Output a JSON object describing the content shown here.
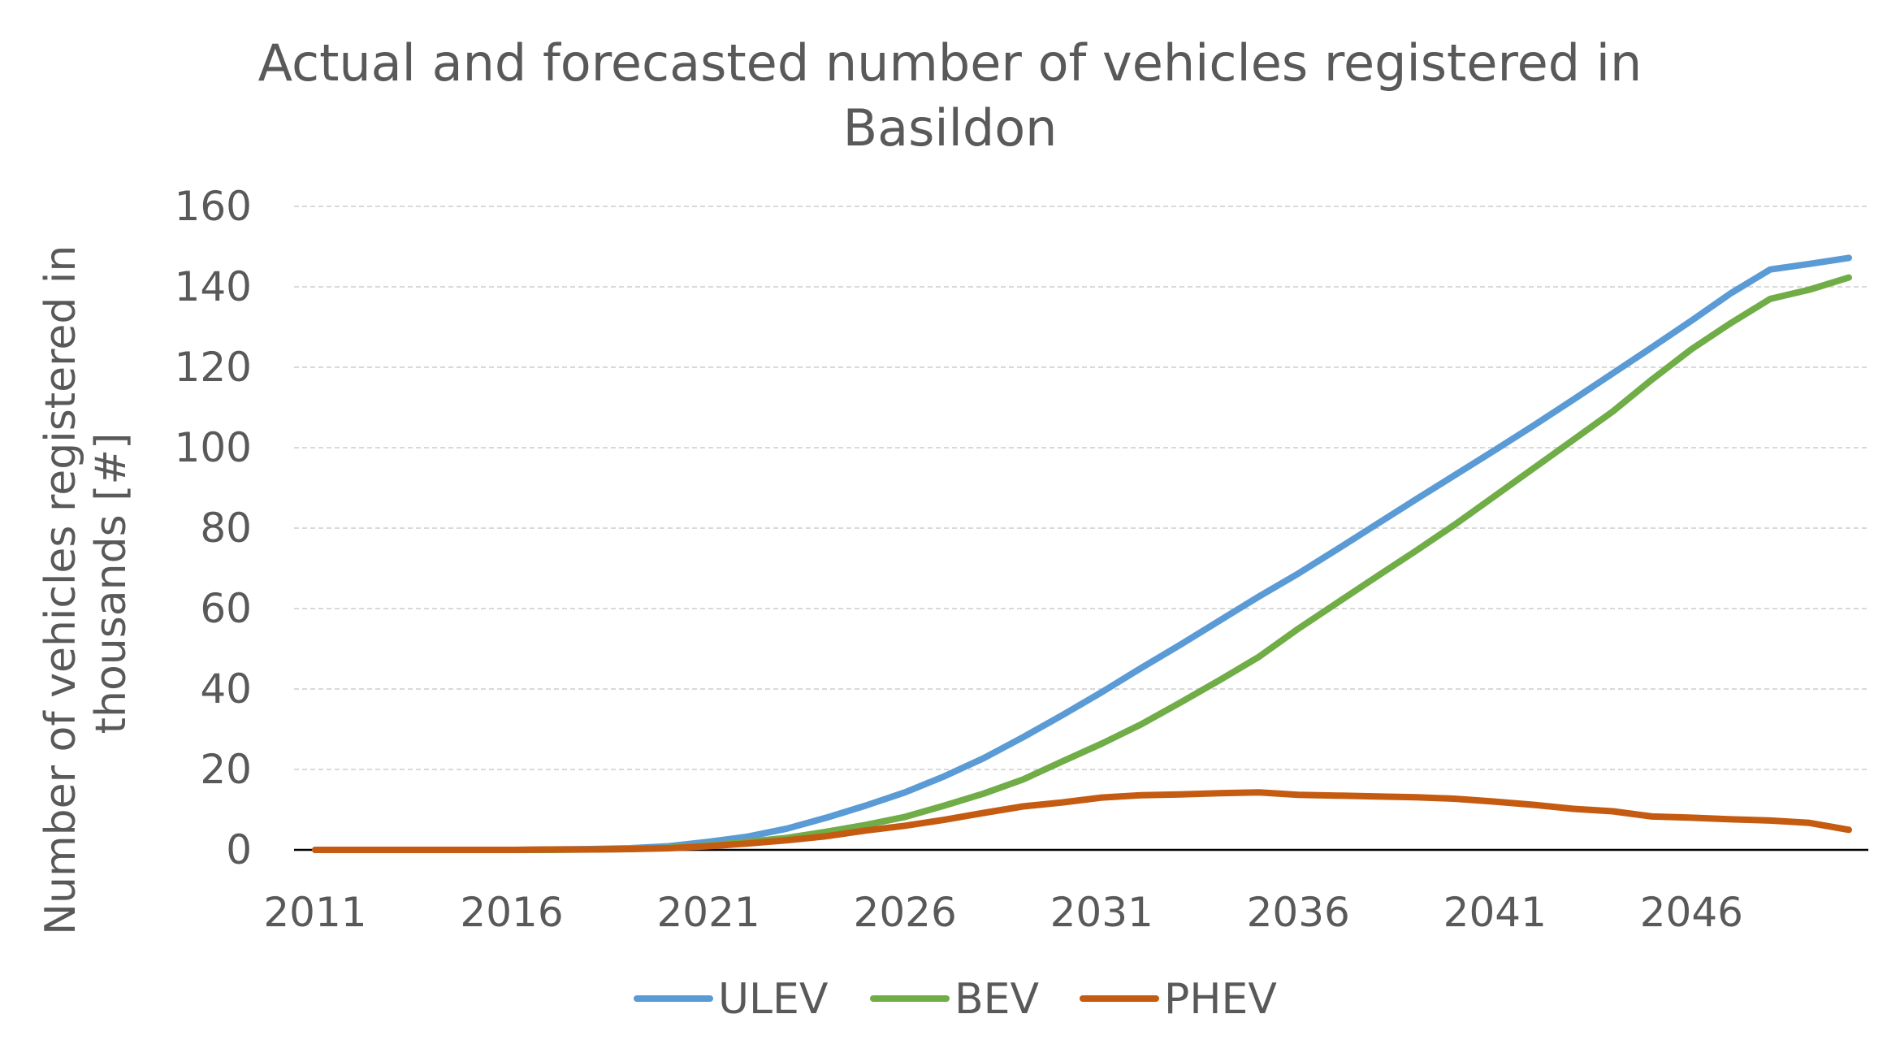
{
  "chart_data": {
    "type": "line",
    "title": "Actual and forecasted number of vehicles registered in\nBasildon",
    "ylabel": "Number of vehicles registered in thousands [#]",
    "ylabel_lines": [
      "Number of vehicles registered in",
      "thousands [#]"
    ],
    "xlabel": "",
    "ylim": [
      0,
      160
    ],
    "yticks": [
      0,
      20,
      40,
      60,
      80,
      100,
      120,
      140,
      160
    ],
    "xlim": [
      2011,
      2050
    ],
    "xticks": [
      2011,
      2016,
      2021,
      2026,
      2031,
      2036,
      2041,
      2046
    ],
    "grid": "horizontal dashed",
    "legend_position": "bottom",
    "x": [
      2011,
      2012,
      2013,
      2014,
      2015,
      2016,
      2017,
      2018,
      2019,
      2020,
      2021,
      2022,
      2023,
      2024,
      2025,
      2026,
      2027,
      2028,
      2029,
      2030,
      2031,
      2032,
      2033,
      2034,
      2035,
      2036,
      2037,
      2038,
      2039,
      2040,
      2041,
      2042,
      2043,
      2044,
      2045,
      2046,
      2047,
      2048,
      2049,
      2050
    ],
    "series": [
      {
        "name": "ULEV",
        "color": "#5B9BD5",
        "values": [
          0,
          0,
          0,
          0,
          0,
          0,
          0.1,
          0.2,
          0.4,
          0.9,
          2,
          3.3,
          5.3,
          8,
          11,
          14.3,
          18.3,
          22.8,
          28,
          33.5,
          39.2,
          45.2,
          51,
          57,
          63,
          68.7,
          74.8,
          81,
          87.2,
          93.3,
          99.4,
          105.6,
          112,
          118.5,
          125,
          131.6,
          138.4,
          144.3,
          145.7,
          147.2
        ]
      },
      {
        "name": "BEV",
        "color": "#70AD47",
        "values": [
          0,
          0,
          0,
          0,
          0,
          0,
          0,
          0.1,
          0.2,
          0.5,
          1.1,
          2,
          3,
          4.5,
          6.2,
          8.2,
          11,
          14,
          17.5,
          22,
          26.4,
          31.2,
          36.6,
          42.2,
          48,
          55,
          61.5,
          68,
          74.4,
          81,
          88,
          95,
          102,
          109,
          117,
          124.5,
          131,
          137,
          139.3,
          142.3
        ]
      },
      {
        "name": "PHEV",
        "color": "#C55A11",
        "values": [
          0,
          0,
          0,
          0,
          0,
          0,
          0.1,
          0.1,
          0.2,
          0.4,
          0.9,
          1.6,
          2.4,
          3.4,
          4.8,
          6,
          7.5,
          9.2,
          10.8,
          11.8,
          13,
          13.6,
          13.8,
          14.1,
          14.3,
          13.7,
          13.5,
          13.3,
          13.1,
          12.7,
          12,
          11.2,
          10.2,
          9.6,
          8.3,
          8,
          7.6,
          7.3,
          6.7,
          5
        ]
      }
    ]
  }
}
